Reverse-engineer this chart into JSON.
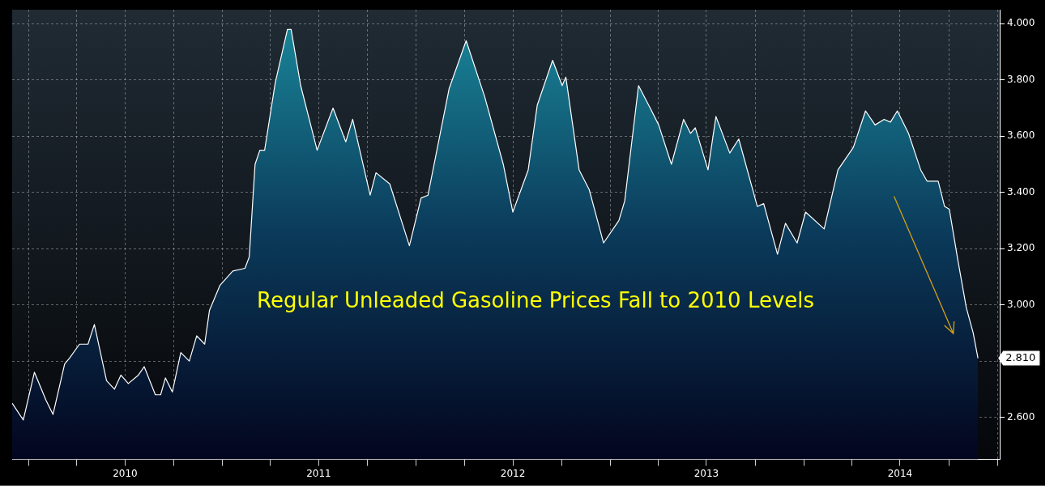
{
  "chart_data": {
    "type": "area",
    "annotations": [
      "Regular Unleaded Gasoline Prices Fall to 2010 Levels",
      {
        "text": "2.810",
        "x": "2014-11-25",
        "y": 2.81
      }
    ],
    "x": [
      "2009-11-30",
      "2009-12-21",
      "2010-01-11",
      "2010-02-02",
      "2010-02-15",
      "2010-02-26",
      "2010-03-09",
      "2010-03-18",
      "2010-04-06",
      "2010-04-22",
      "2010-05-04",
      "2010-05-27",
      "2010-06-11",
      "2010-06-23",
      "2010-07-07",
      "2010-07-26",
      "2010-08-06",
      "2010-08-27",
      "2010-09-06",
      "2010-09-15",
      "2010-09-28",
      "2010-10-14",
      "2010-10-30",
      "2010-11-13",
      "2010-11-28",
      "2010-12-07",
      "2010-12-27",
      "2011-01-20",
      "2011-02-12",
      "2011-02-20",
      "2011-03-03",
      "2011-03-12",
      "2011-03-21",
      "2011-04-10",
      "2011-05-03",
      "2011-05-10",
      "2011-05-28",
      "2011-06-28",
      "2011-07-28",
      "2011-08-21",
      "2011-09-03",
      "2011-10-06",
      "2011-10-17",
      "2011-11-12",
      "2011-12-19",
      "2012-01-10",
      "2012-01-23",
      "2012-03-03",
      "2012-04-04",
      "2012-05-09",
      "2012-06-13",
      "2012-07-01",
      "2012-07-30",
      "2012-08-16",
      "2012-09-14",
      "2012-10-02",
      "2012-10-09",
      "2012-11-03",
      "2012-11-22",
      "2012-12-19",
      "2013-01-17",
      "2013-01-28",
      "2013-02-23",
      "2013-03-17",
      "2013-04-02",
      "2013-04-26",
      "2013-05-19",
      "2013-06-01",
      "2013-06-10",
      "2013-07-04",
      "2013-07-19",
      "2013-08-14",
      "2013-08-31",
      "2013-10-05",
      "2013-10-17",
      "2013-11-12",
      "2013-11-27",
      "2013-12-19",
      "2014-01-04",
      "2014-02-08",
      "2014-03-06",
      "2014-04-04",
      "2014-04-27",
      "2014-05-15",
      "2014-06-01",
      "2014-06-13",
      "2014-06-26",
      "2014-07-17",
      "2014-08-09",
      "2014-08-21",
      "2014-09-11",
      "2014-09-23",
      "2014-10-02",
      "2014-10-18",
      "2014-11-03",
      "2014-11-16",
      "2014-11-25"
    ],
    "series": [
      {
        "color": "#ffffff",
        "values": [
          2.65,
          2.59,
          2.76,
          2.66,
          2.61,
          2.7,
          2.79,
          2.81,
          2.86,
          2.86,
          2.93,
          2.73,
          2.7,
          2.75,
          2.72,
          2.75,
          2.78,
          2.68,
          2.68,
          2.74,
          2.69,
          2.83,
          2.8,
          2.89,
          2.86,
          2.98,
          3.07,
          3.12,
          3.13,
          3.17,
          3.5,
          3.55,
          3.55,
          3.79,
          3.98,
          3.98,
          3.78,
          3.55,
          3.7,
          3.58,
          3.66,
          3.39,
          3.47,
          3.43,
          3.21,
          3.38,
          3.39,
          3.77,
          3.94,
          3.74,
          3.5,
          3.33,
          3.48,
          3.71,
          3.87,
          3.78,
          3.81,
          3.48,
          3.41,
          3.22,
          3.3,
          3.37,
          3.78,
          3.7,
          3.64,
          3.5,
          3.66,
          3.61,
          3.63,
          3.48,
          3.67,
          3.54,
          3.59,
          3.35,
          3.36,
          3.18,
          3.29,
          3.22,
          3.33,
          3.27,
          3.48,
          3.56,
          3.69,
          3.64,
          3.66,
          3.65,
          3.69,
          3.61,
          3.48,
          3.44,
          3.44,
          3.35,
          3.34,
          3.16,
          2.99,
          2.9,
          2.81
        ]
      }
    ],
    "xlim": [
      "2009-11-30",
      "2015-01-05"
    ],
    "xticks": [
      {
        "value": "2010-01-01",
        "label": null
      },
      {
        "value": "2010-04-01",
        "label": null
      },
      {
        "value": "2010-07-01",
        "label": "2010"
      },
      {
        "value": "2010-10-01",
        "label": null
      },
      {
        "value": "2011-01-01",
        "label": null
      },
      {
        "value": "2011-04-01",
        "label": null
      },
      {
        "value": "2011-07-01",
        "label": "2011"
      },
      {
        "value": "2011-10-01",
        "label": null
      },
      {
        "value": "2012-01-01",
        "label": null
      },
      {
        "value": "2012-04-01",
        "label": null
      },
      {
        "value": "2012-07-01",
        "label": "2012"
      },
      {
        "value": "2012-10-01",
        "label": null
      },
      {
        "value": "2013-01-01",
        "label": null
      },
      {
        "value": "2013-04-01",
        "label": null
      },
      {
        "value": "2013-07-01",
        "label": "2013"
      },
      {
        "value": "2013-10-01",
        "label": null
      },
      {
        "value": "2014-01-01",
        "label": null
      },
      {
        "value": "2014-04-01",
        "label": null
      },
      {
        "value": "2014-07-01",
        "label": "2014"
      },
      {
        "value": "2014-10-01",
        "label": null
      },
      {
        "value": "2015-01-01",
        "label": null
      }
    ],
    "ylim": [
      2.45,
      4.05
    ],
    "yticks": [
      {
        "value": 2.6,
        "label": "2.600"
      },
      {
        "value": 2.8,
        "label": null
      },
      {
        "value": 3.0,
        "label": "3.000"
      },
      {
        "value": 3.2,
        "label": "3.200"
      },
      {
        "value": 3.4,
        "label": "3.400"
      },
      {
        "value": 3.6,
        "label": "3.600"
      },
      {
        "value": 3.8,
        "label": "3.800"
      },
      {
        "value": 4.0,
        "label": "4.000"
      }
    ],
    "grid": true,
    "legend": false,
    "marker": "none"
  }
}
